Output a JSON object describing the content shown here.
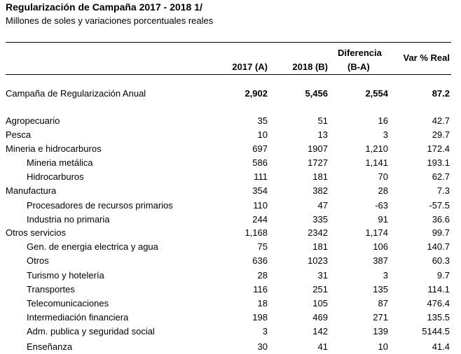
{
  "title": "Regularización de Campaña 2017 - 2018 1/",
  "subtitle": "Millones de soles y variaciones porcentuales reales",
  "headers": {
    "col_a": "2017 (A)",
    "col_b": "2018 (B)",
    "col_diff_line1": "Diferencia",
    "col_diff_line2": "(B-A)",
    "col_var": "Var % Real"
  },
  "rows": [
    {
      "label": "Campaña de Regularización Anual",
      "a": "2,902",
      "b": "5,456",
      "diff": "2,554",
      "var": "87.2",
      "kind": "total"
    },
    {
      "label": "Agropecuario",
      "a": "35",
      "b": "51",
      "diff": "16",
      "var": "42.7",
      "kind": "main"
    },
    {
      "label": "Pesca",
      "a": "10",
      "b": "13",
      "diff": "3",
      "var": "29.7",
      "kind": "main"
    },
    {
      "label": "Mineria e hidrocarburos",
      "a": "697",
      "b": "1907",
      "diff": "1,210",
      "var": "172.4",
      "kind": "main"
    },
    {
      "label": "Mineria metálica",
      "a": "586",
      "b": "1727",
      "diff": "1,141",
      "var": "193.1",
      "kind": "sub"
    },
    {
      "label": "Hidrocarburos",
      "a": "111",
      "b": "181",
      "diff": "70",
      "var": "62.7",
      "kind": "sub"
    },
    {
      "label": "Manufactura",
      "a": "354",
      "b": "382",
      "diff": "28",
      "var": "7.3",
      "kind": "main"
    },
    {
      "label": "Procesadores de recursos primarios",
      "a": "110",
      "b": "47",
      "diff": "-63",
      "var": "-57.5",
      "kind": "sub"
    },
    {
      "label": "Industria no primaria",
      "a": "244",
      "b": "335",
      "diff": "91",
      "var": "36.6",
      "kind": "sub"
    },
    {
      "label": "Otros servicios",
      "a": "1,168",
      "b": "2342",
      "diff": "1,174",
      "var": "99.7",
      "kind": "main"
    },
    {
      "label": "Gen. de energia electrica y agua",
      "a": "75",
      "b": "181",
      "diff": "106",
      "var": "140.7",
      "kind": "sub"
    },
    {
      "label": "Otros",
      "a": "636",
      "b": "1023",
      "diff": "387",
      "var": "60.3",
      "kind": "sub"
    },
    {
      "label": "Turismo y hotelería",
      "a": "28",
      "b": "31",
      "diff": "3",
      "var": "9.7",
      "kind": "sub"
    },
    {
      "label": "Transportes",
      "a": "116",
      "b": "251",
      "diff": "135",
      "var": "114.1",
      "kind": "sub"
    },
    {
      "label": "Telecomunicaciones",
      "a": "18",
      "b": "105",
      "diff": "87",
      "var": "476.4",
      "kind": "sub"
    },
    {
      "label": "Intermediación financiera",
      "a": "198",
      "b": "469",
      "diff": "271",
      "var": "135.5",
      "kind": "sub"
    },
    {
      "label": "Adm. publica y seguridad social",
      "a": "3",
      "b": "142",
      "diff": "139",
      "var": "5144.5",
      "kind": "sub"
    },
    {
      "label": "Enseñanza",
      "a": "30",
      "b": "41",
      "diff": "10",
      "var": "41.4",
      "kind": "sub"
    }
  ]
}
